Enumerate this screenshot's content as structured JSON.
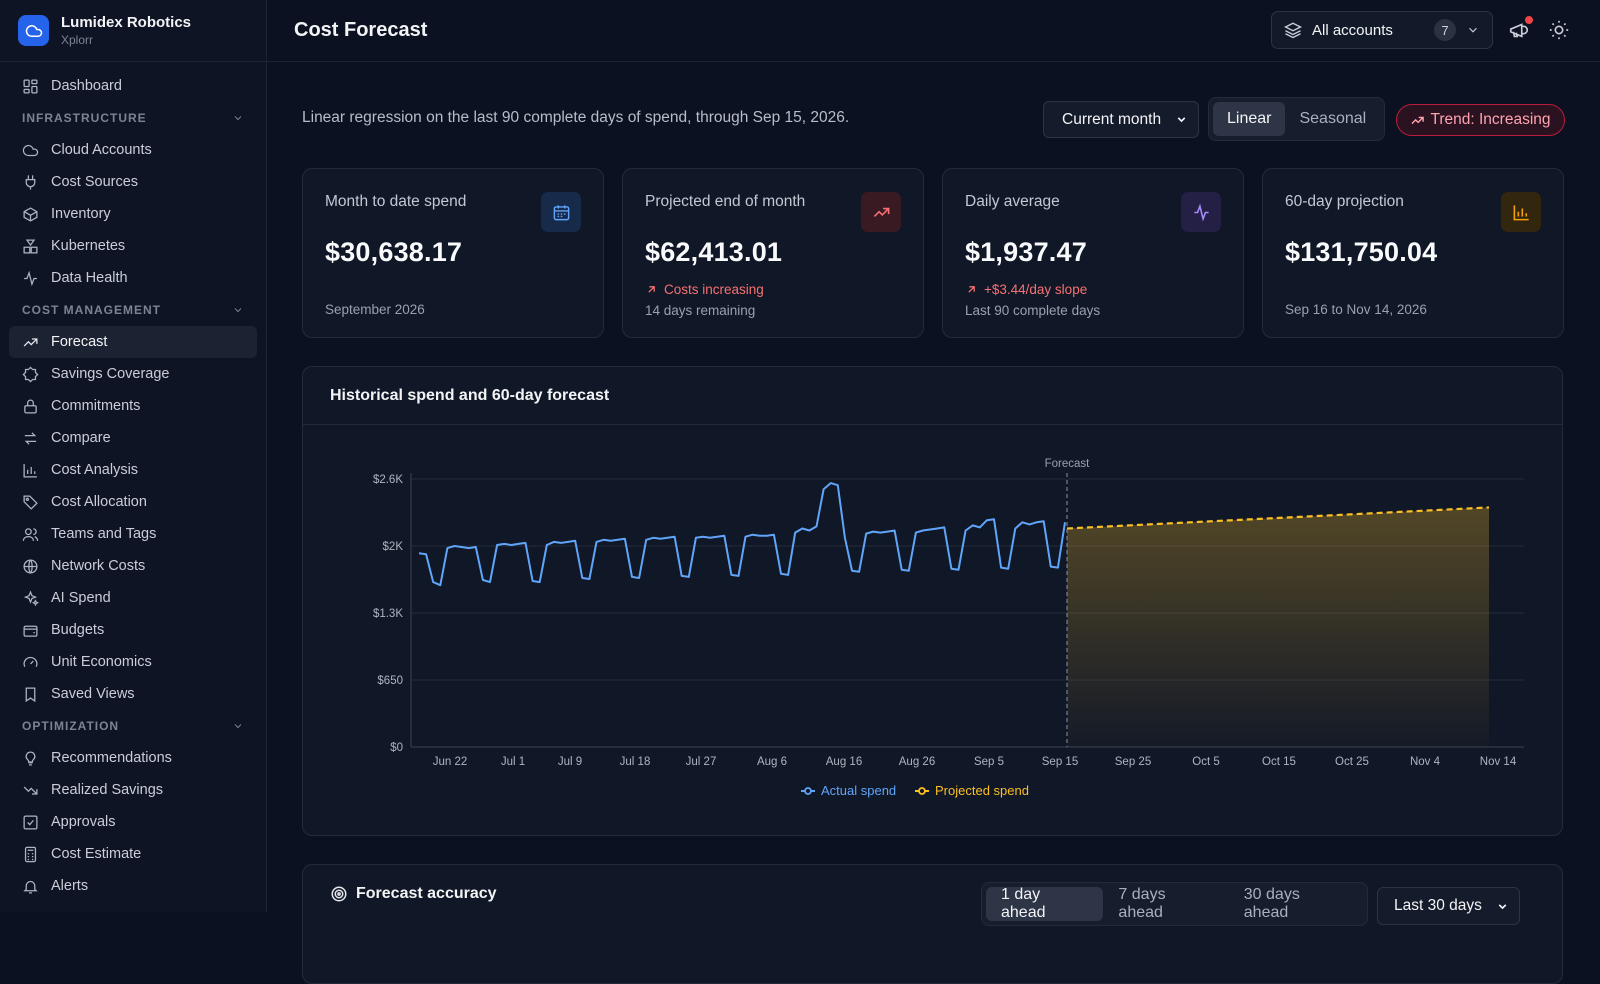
{
  "brand": {
    "name": "Lumidex Robotics",
    "sub": "Xplorr"
  },
  "sidebar": {
    "dashboard": "Dashboard",
    "sections": [
      {
        "title": "INFRASTRUCTURE",
        "items": [
          "Cloud Accounts",
          "Cost Sources",
          "Inventory",
          "Kubernetes",
          "Data Health"
        ]
      },
      {
        "title": "COST MANAGEMENT",
        "items": [
          "Forecast",
          "Savings Coverage",
          "Commitments",
          "Compare",
          "Cost Analysis",
          "Cost Allocation",
          "Teams and Tags",
          "Network Costs",
          "AI Spend",
          "Budgets",
          "Unit Economics",
          "Saved Views"
        ]
      },
      {
        "title": "OPTIMIZATION",
        "items": [
          "Recommendations",
          "Realized Savings",
          "Approvals",
          "Cost Estimate",
          "Alerts"
        ]
      }
    ],
    "active": "Forecast"
  },
  "header": {
    "title": "Cost Forecast",
    "account_label": "All accounts",
    "account_count": "7"
  },
  "controls": {
    "subtitle": "Linear regression on the last 90 complete days of spend, through Sep 15, 2026.",
    "period": "Current month",
    "model_tabs": [
      "Linear",
      "Seasonal"
    ],
    "active_model": "Linear",
    "trend": "Trend: Increasing"
  },
  "kpis": [
    {
      "label": "Month to date spend",
      "value": "$30,638.17",
      "trend": "",
      "sub": "September 2026",
      "icon": "calendar-icon",
      "color": "#3b82f6"
    },
    {
      "label": "Projected end of month",
      "value": "$62,413.01",
      "trend": "Costs increasing",
      "sub": "14 days remaining",
      "icon": "trending-up-icon",
      "color": "#f87171"
    },
    {
      "label": "Daily average",
      "value": "$1,937.47",
      "trend": "+$3.44/day slope",
      "sub": "Last 90 complete days",
      "icon": "activity-icon",
      "color": "#a78bfa"
    },
    {
      "label": "60-day projection",
      "value": "$131,750.04",
      "trend": "",
      "sub": "Sep 16 to Nov 14, 2026",
      "icon": "bar-chart-icon",
      "color": "#f59e0b"
    }
  ],
  "chart_title": "Historical spend and 60-day forecast",
  "chart_data": {
    "type": "line",
    "y_ticks": [
      "$0",
      "$650",
      "$1.3K",
      "$2K",
      "$2.6K"
    ],
    "ylim": [
      0,
      2600
    ],
    "x_ticks": [
      "Jun 22",
      "Jul 1",
      "Jul 9",
      "Jul 18",
      "Jul 27",
      "Aug 6",
      "Aug 16",
      "Aug 26",
      "Sep 5",
      "Sep 15",
      "Sep 25",
      "Oct 5",
      "Oct 15",
      "Oct 25",
      "Nov 4",
      "Nov 14"
    ],
    "forecast_marker": "Forecast",
    "series": [
      {
        "name": "Actual spend",
        "color": "#60a5fa",
        "values": [
          1880,
          1870,
          1600,
          1570,
          1930,
          1950,
          1940,
          1930,
          1940,
          1620,
          1600,
          1960,
          1970,
          1960,
          1970,
          1980,
          1610,
          1600,
          1960,
          1990,
          1980,
          1990,
          2000,
          1640,
          1630,
          1990,
          2010,
          2000,
          2010,
          2020,
          1650,
          1640,
          2010,
          2030,
          2020,
          2030,
          2040,
          1660,
          1650,
          2030,
          2040,
          2030,
          2040,
          2050,
          1670,
          1660,
          2040,
          2060,
          2050,
          2050,
          2060,
          1680,
          1670,
          2080,
          2120,
          2100,
          2140,
          2500,
          2560,
          2540,
          2030,
          1710,
          1700,
          2070,
          2090,
          2080,
          2090,
          2100,
          1720,
          1710,
          2080,
          2100,
          2110,
          2120,
          2130,
          1730,
          1720,
          2100,
          2150,
          2130,
          2200,
          2210,
          1740,
          1730,
          2120,
          2180,
          2160,
          2180,
          2190,
          1750,
          1740,
          2180
        ]
      },
      {
        "name": "Projected spend",
        "color": "#fbbf24",
        "values": [
          2120,
          2324
        ]
      }
    ]
  },
  "accuracy": {
    "title": "Forecast accuracy",
    "tabs": [
      "1 day ahead",
      "7 days ahead",
      "30 days ahead"
    ],
    "active_tab": "1 day ahead",
    "range": "Last 30 days"
  }
}
